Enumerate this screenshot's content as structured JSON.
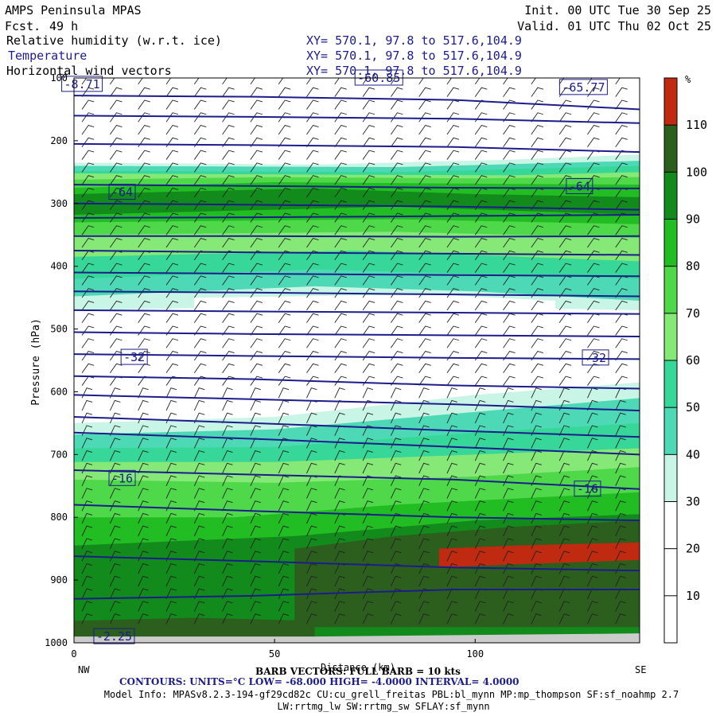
{
  "header": {
    "model": "AMPS Peninsula MPAS",
    "fcst_label": "Fcst.",
    "fcst_value": "49 h",
    "init": "Init. 00 UTC Tue 30 Sep 25",
    "valid": "Valid. 01 UTC Thu 02 Oct 25",
    "fields": [
      {
        "name": "Relative humidity (w.r.t. ice)",
        "xy": "XY= 570.1, 97.8 to 517.6,104.9"
      },
      {
        "name": "Temperature",
        "xy": "XY= 570.1, 97.8 to 517.6,104.9"
      },
      {
        "name": "Horizontal wind vectors",
        "xy": "XY= 570.1, 97.8 to 517.6,104.9"
      }
    ]
  },
  "footer": {
    "barb_line": "BARB VECTORS: FULL BARB = 10 kts",
    "distance_label": "Distance (km)",
    "contours": "CONTOURS:  UNITS=°C  LOW= -68.000      HIGH= -4.0000      INTERVAL=   4.0000",
    "model_info_1": "Model Info: MPASv8.2.3-194-gf29cd82c CU:cu_grell_freitas PBL:bl_mynn MP:mp_thompson SF:sf_noahmp 2.7",
    "model_info_2": "LW:rrtmg_lw SW:rrtmg_sw SFLAY:sf_mynn"
  },
  "colors": {
    "cb_0": "#ffffff",
    "cb_30": "#c8f5e6",
    "cb_40": "#4ed9b6",
    "cb_50": "#37d79a",
    "cb_60": "#86e876",
    "cb_70": "#4fd84a",
    "cb_80": "#22bd22",
    "cb_90": "#128a1c",
    "cb_100": "#2c5e1e",
    "cb_110": "#bf2a10",
    "contour": "#1c1c8c"
  },
  "chart_data": {
    "type": "heatmap",
    "title": "Relative humidity (w.r.t. ice)",
    "xlabel": "Distance (km)",
    "ylabel": "Pressure (hPa)",
    "xlim": [
      0,
      141
    ],
    "ylim": [
      1000,
      100
    ],
    "x_ticks": [
      0,
      50,
      100
    ],
    "y_ticks": [
      100,
      200,
      300,
      400,
      500,
      600,
      700,
      800,
      900,
      1000
    ],
    "x_end_labels": [
      "NW",
      "SE"
    ],
    "colorbar": {
      "unit": "%",
      "ticks": [
        10,
        20,
        30,
        40,
        50,
        60,
        70,
        80,
        90,
        100,
        110
      ],
      "levels": [
        0,
        10,
        20,
        30,
        40,
        50,
        60,
        70,
        80,
        90,
        100,
        110,
        120
      ]
    },
    "contour_labels": [
      {
        "text": "-8.71",
        "x": 2,
        "p": 110
      },
      {
        "text": "-60.85",
        "x": 76,
        "p": 100
      },
      {
        "text": "-65.77",
        "x": 127,
        "p": 115
      },
      {
        "text": "-64",
        "x": 12,
        "p": 282
      },
      {
        "text": "-64",
        "x": 126,
        "p": 273
      },
      {
        "text": "-32",
        "x": 15,
        "p": 545
      },
      {
        "text": "-32",
        "x": 130,
        "p": 546
      },
      {
        "text": "-16",
        "x": 12,
        "p": 738
      },
      {
        "text": "-16",
        "x": 128,
        "p": 755
      },
      {
        "text": "-2.25",
        "x": 10,
        "p": 990
      }
    ]
  }
}
